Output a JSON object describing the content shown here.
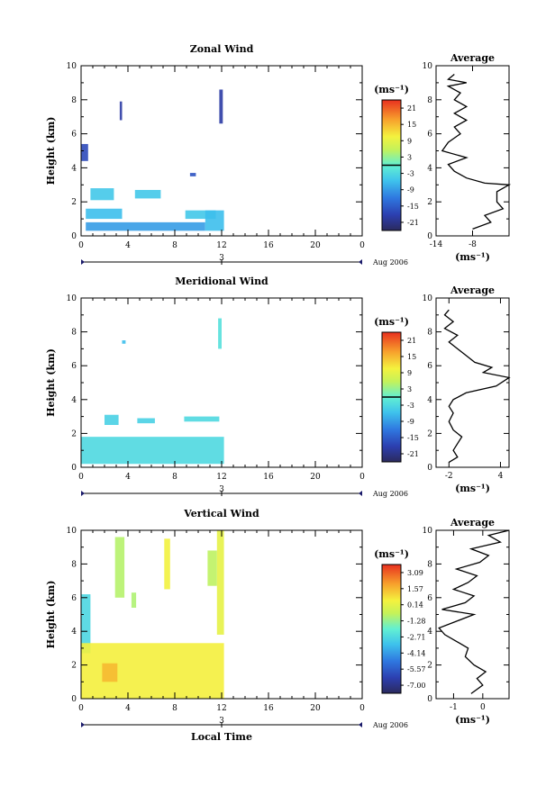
{
  "figure": {
    "xlabel": "Local Time",
    "date_label": "Aug 2006",
    "day_label": "3"
  },
  "chart_data": [
    {
      "type": "heatmap",
      "title": "Zonal Wind",
      "ylabel": "Height (km)",
      "xlim": [
        0,
        24
      ],
      "ylim": [
        0,
        10
      ],
      "xticks": [
        "0",
        "4",
        "8",
        "12",
        "16",
        "20",
        "0"
      ],
      "yticks": [
        "0",
        "2",
        "4",
        "6",
        "8",
        "10"
      ],
      "colorbar_unit": "(ms⁻¹)",
      "colorbar_ticks": [
        "21",
        "15",
        "9",
        "3",
        "-3",
        "-9",
        "-15",
        "-21"
      ],
      "colorbar_range": [
        -24,
        24
      ],
      "blocks": [
        {
          "x0": 0.0,
          "x1": 0.6,
          "y0": 4.4,
          "y1": 5.4,
          "value": -17
        },
        {
          "x0": 3.3,
          "x1": 3.5,
          "y0": 6.8,
          "y1": 7.9,
          "value": -19
        },
        {
          "x0": 11.8,
          "x1": 12.1,
          "y0": 6.6,
          "y1": 8.6,
          "value": -19
        },
        {
          "x0": 9.3,
          "x1": 9.8,
          "y0": 3.5,
          "y1": 3.7,
          "value": -16
        },
        {
          "x0": 0.8,
          "x1": 2.8,
          "y0": 2.1,
          "y1": 2.8,
          "value": -5
        },
        {
          "x0": 4.6,
          "x1": 6.8,
          "y0": 2.2,
          "y1": 2.7,
          "value": -5
        },
        {
          "x0": 0.4,
          "x1": 3.5,
          "y0": 1.0,
          "y1": 1.6,
          "value": -6
        },
        {
          "x0": 8.9,
          "x1": 11.5,
          "y0": 1.0,
          "y1": 1.5,
          "value": -5
        },
        {
          "x0": 0.4,
          "x1": 10.6,
          "y0": 0.3,
          "y1": 0.8,
          "value": -9
        },
        {
          "x0": 10.6,
          "x1": 12.2,
          "y0": 0.3,
          "y1": 1.5,
          "value": -6
        }
      ],
      "average": {
        "title": "Average",
        "xlabel": "(ms⁻¹)",
        "xlim": [
          -14,
          -2
        ],
        "xticks": [
          "-14",
          "-8"
        ],
        "points": [
          [
            -8,
            0.4
          ],
          [
            -5,
            0.8
          ],
          [
            -6,
            1.2
          ],
          [
            -3,
            1.6
          ],
          [
            -4,
            2.0
          ],
          [
            -4,
            2.6
          ],
          [
            -2,
            3.0
          ],
          [
            -6,
            3.1
          ],
          [
            -9,
            3.4
          ],
          [
            -11,
            3.8
          ],
          [
            -12,
            4.2
          ],
          [
            -9,
            4.6
          ],
          [
            -13,
            5.0
          ],
          [
            -12,
            5.5
          ],
          [
            -10,
            6.0
          ],
          [
            -11,
            6.4
          ],
          [
            -9,
            6.8
          ],
          [
            -11,
            7.2
          ],
          [
            -9,
            7.6
          ],
          [
            -11,
            8.0
          ],
          [
            -10,
            8.4
          ],
          [
            -12,
            8.8
          ],
          [
            -9,
            9.0
          ],
          [
            -12,
            9.2
          ],
          [
            -11,
            9.5
          ]
        ]
      }
    },
    {
      "type": "heatmap",
      "title": "Meridional Wind",
      "ylabel": "Height (km)",
      "xlim": [
        0,
        24
      ],
      "ylim": [
        0,
        10
      ],
      "xticks": [
        "0",
        "4",
        "8",
        "12",
        "16",
        "20",
        "0"
      ],
      "yticks": [
        "0",
        "2",
        "4",
        "6",
        "8",
        "10"
      ],
      "colorbar_unit": "(ms⁻¹)",
      "colorbar_ticks": [
        "21",
        "15",
        "9",
        "3",
        "-3",
        "-9",
        "-15",
        "-21"
      ],
      "colorbar_range": [
        -24,
        24
      ],
      "blocks": [
        {
          "x0": 11.7,
          "x1": 12.0,
          "y0": 7.0,
          "y1": 8.8,
          "value": -2
        },
        {
          "x0": 3.5,
          "x1": 3.8,
          "y0": 7.3,
          "y1": 7.5,
          "value": -6
        },
        {
          "x0": 2.0,
          "x1": 3.2,
          "y0": 2.5,
          "y1": 3.1,
          "value": -4
        },
        {
          "x0": 4.8,
          "x1": 6.3,
          "y0": 2.6,
          "y1": 2.9,
          "value": -4
        },
        {
          "x0": 8.8,
          "x1": 11.8,
          "y0": 2.7,
          "y1": 3.0,
          "value": -3
        },
        {
          "x0": 0.0,
          "x1": 12.2,
          "y0": 0.2,
          "y1": 1.8,
          "value": -3
        }
      ],
      "average": {
        "title": "Average",
        "xlabel": "(ms⁻¹)",
        "xlim": [
          -3.5,
          5
        ],
        "xticks": [
          "-2",
          "4"
        ],
        "points": [
          [
            -2,
            0.3
          ],
          [
            -1,
            0.6
          ],
          [
            -1.5,
            1.0
          ],
          [
            -1,
            1.4
          ],
          [
            -0.5,
            1.8
          ],
          [
            -1.5,
            2.2
          ],
          [
            -2,
            2.7
          ],
          [
            -1.5,
            3.2
          ],
          [
            -2,
            3.6
          ],
          [
            -1.5,
            4.0
          ],
          [
            0,
            4.4
          ],
          [
            3.5,
            4.8
          ],
          [
            5,
            5.3
          ],
          [
            2,
            5.6
          ],
          [
            3,
            5.9
          ],
          [
            1,
            6.2
          ],
          [
            0,
            6.6
          ],
          [
            -1,
            7.0
          ],
          [
            -2,
            7.4
          ],
          [
            -1,
            7.8
          ],
          [
            -2.5,
            8.2
          ],
          [
            -1.5,
            8.6
          ],
          [
            -2.5,
            9.0
          ],
          [
            -2,
            9.3
          ]
        ]
      }
    },
    {
      "type": "heatmap",
      "title": "Vertical Wind",
      "ylabel": "Height (km)",
      "xlim": [
        0,
        24
      ],
      "ylim": [
        0,
        10
      ],
      "xticks": [
        "0",
        "4",
        "8",
        "12",
        "16",
        "20",
        "0"
      ],
      "yticks": [
        "0",
        "2",
        "4",
        "6",
        "8",
        "10"
      ],
      "colorbar_unit": "(ms⁻¹)",
      "colorbar_ticks": [
        "3.09",
        "1.57",
        "0.14",
        "-1.28",
        "-2.71",
        "-4.14",
        "-5.57",
        "-7.00"
      ],
      "colorbar_range": [
        -7.8,
        3.8
      ],
      "blocks": [
        {
          "x0": 0.0,
          "x1": 0.8,
          "y0": 2.7,
          "y1": 6.2,
          "value": -2.8
        },
        {
          "x0": 2.9,
          "x1": 3.7,
          "y0": 6.0,
          "y1": 9.6,
          "value": -0.8
        },
        {
          "x0": 4.3,
          "x1": 4.7,
          "y0": 5.4,
          "y1": 6.3,
          "value": -0.9
        },
        {
          "x0": 7.1,
          "x1": 7.6,
          "y0": 6.5,
          "y1": 9.5,
          "value": 0.5
        },
        {
          "x0": 10.8,
          "x1": 11.6,
          "y0": 6.7,
          "y1": 8.8,
          "value": -0.7
        },
        {
          "x0": 11.6,
          "x1": 12.2,
          "y0": 3.8,
          "y1": 10.0,
          "value": 0.2
        },
        {
          "x0": 0.0,
          "x1": 12.2,
          "y0": 0.0,
          "y1": 3.3,
          "value": 0.6
        },
        {
          "x0": 1.8,
          "x1": 3.1,
          "y0": 1.0,
          "y1": 2.1,
          "value": 1.6
        }
      ],
      "average": {
        "title": "Average",
        "xlabel": "(ms⁻¹)",
        "xlim": [
          -1.6,
          0.9
        ],
        "xticks": [
          "-1",
          "0"
        ],
        "points": [
          [
            -0.4,
            0.3
          ],
          [
            0,
            0.8
          ],
          [
            -0.2,
            1.2
          ],
          [
            0.1,
            1.6
          ],
          [
            -0.3,
            2.0
          ],
          [
            -0.6,
            2.5
          ],
          [
            -0.5,
            3.0
          ],
          [
            -0.9,
            3.4
          ],
          [
            -1.3,
            3.8
          ],
          [
            -1.5,
            4.2
          ],
          [
            -0.9,
            4.6
          ],
          [
            -0.3,
            5.0
          ],
          [
            -1.4,
            5.3
          ],
          [
            -0.6,
            5.7
          ],
          [
            -0.3,
            6.1
          ],
          [
            -1.0,
            6.5
          ],
          [
            -0.5,
            6.9
          ],
          [
            -0.2,
            7.3
          ],
          [
            -0.9,
            7.7
          ],
          [
            -0.1,
            8.1
          ],
          [
            0.2,
            8.5
          ],
          [
            -0.4,
            8.9
          ],
          [
            0.6,
            9.3
          ],
          [
            0.2,
            9.7
          ],
          [
            0.9,
            10.0
          ]
        ]
      }
    }
  ]
}
